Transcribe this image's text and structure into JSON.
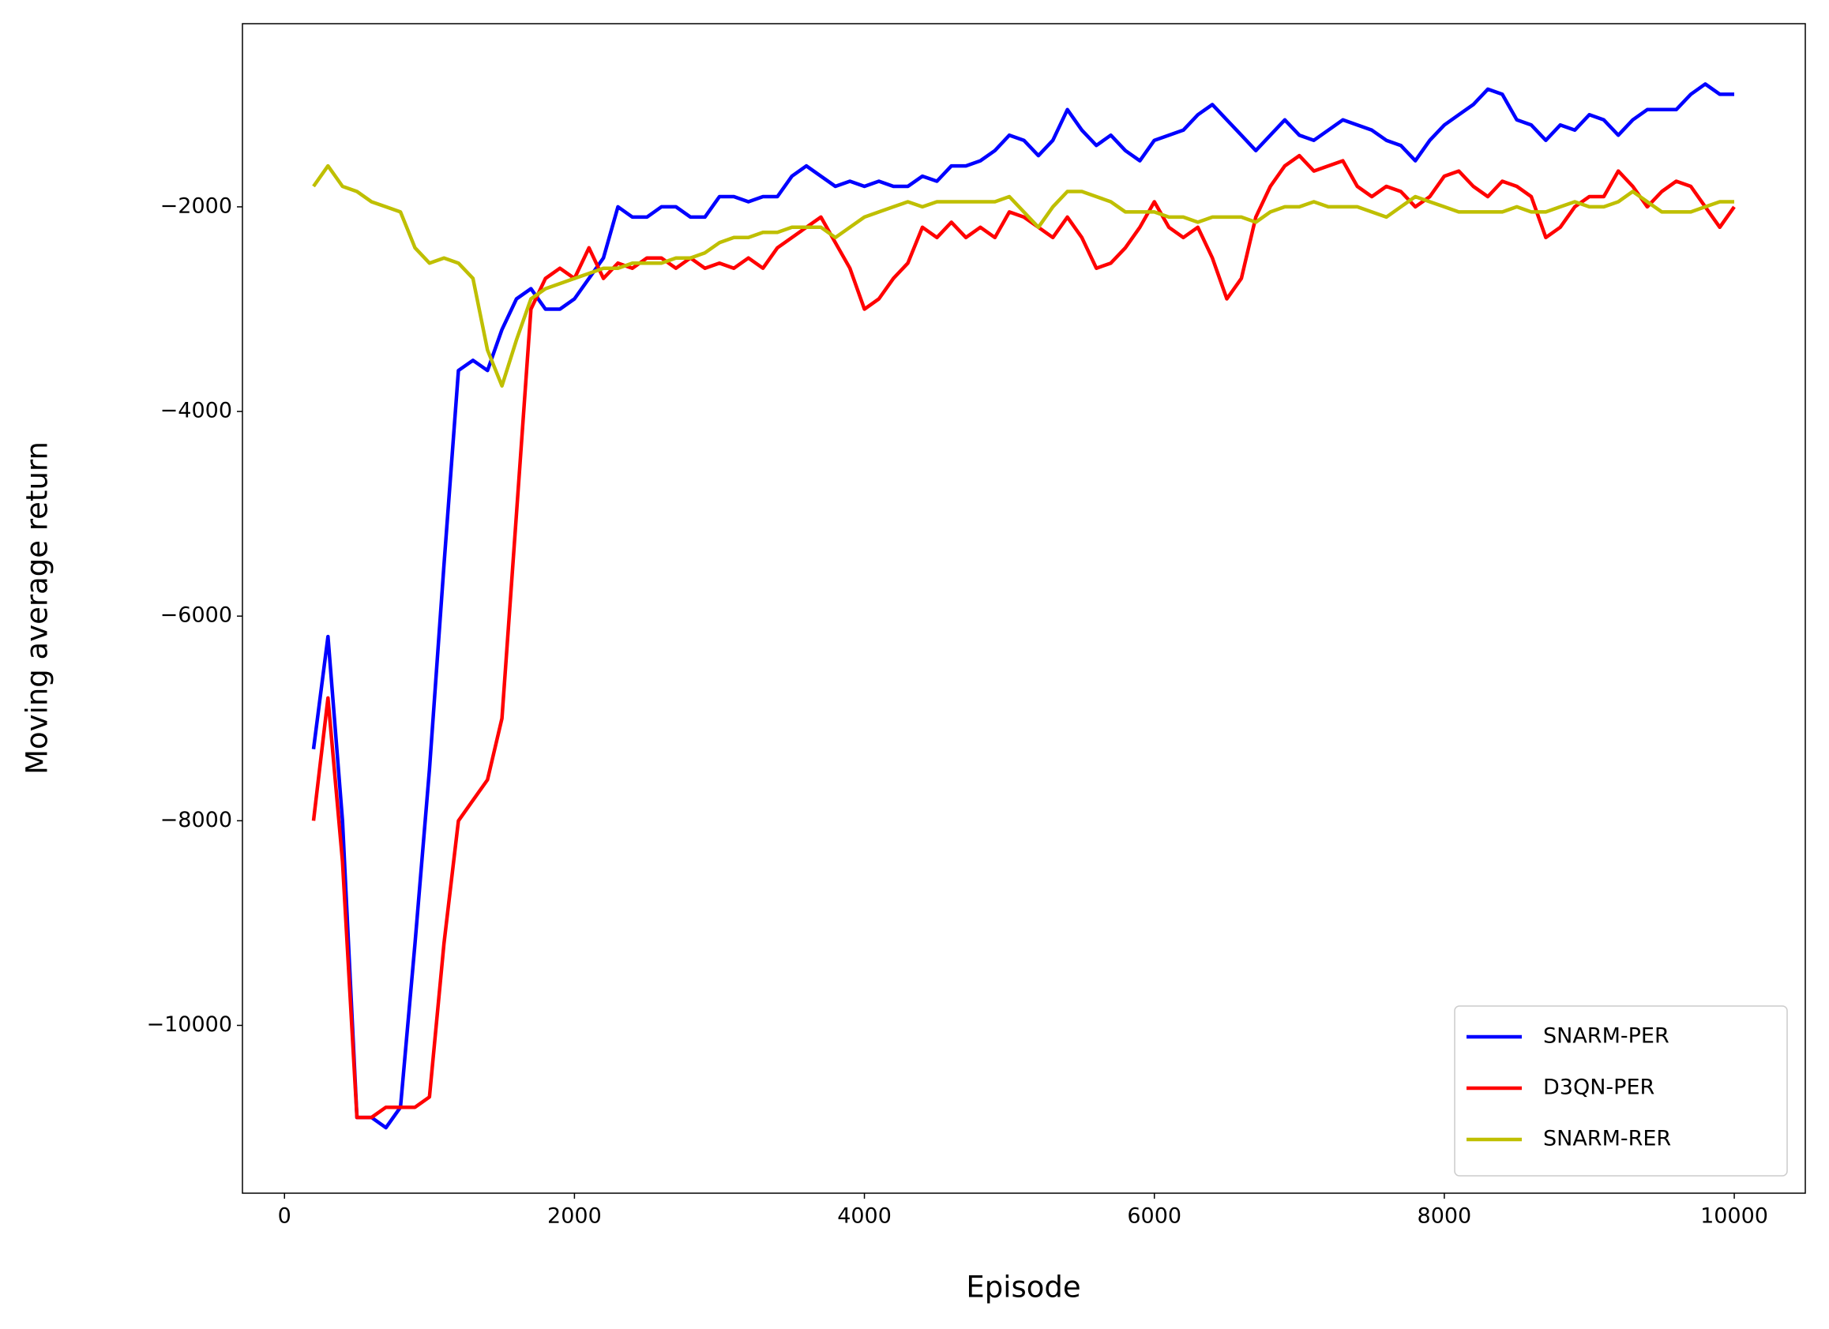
{
  "chart_data": {
    "type": "line",
    "x_label": "Episode",
    "y_label": "Moving average return",
    "xlim": [
      -290,
      10490
    ],
    "ylim": [
      -11640,
      -210
    ],
    "xticks": [
      0,
      2000,
      4000,
      6000,
      8000,
      10000
    ],
    "yticks": [
      {
        "value": -10000,
        "label": "−10000"
      },
      {
        "value": -8000,
        "label": "−8000"
      },
      {
        "value": -6000,
        "label": "−6000"
      },
      {
        "value": -4000,
        "label": "−4000"
      },
      {
        "value": -2000,
        "label": "−2000"
      }
    ],
    "legend": "lower right",
    "x": [
      200,
      300,
      400,
      500,
      600,
      700,
      800,
      900,
      1000,
      1100,
      1200,
      1300,
      1400,
      1500,
      1600,
      1700,
      1800,
      1900,
      2000,
      2100,
      2200,
      2300,
      2400,
      2500,
      2600,
      2700,
      2800,
      2900,
      3000,
      3100,
      3200,
      3300,
      3400,
      3500,
      3600,
      3700,
      3800,
      3900,
      4000,
      4100,
      4200,
      4300,
      4400,
      4500,
      4600,
      4700,
      4800,
      4900,
      5000,
      5100,
      5200,
      5300,
      5400,
      5500,
      5600,
      5700,
      5800,
      5900,
      6000,
      6100,
      6200,
      6300,
      6400,
      6500,
      6600,
      6700,
      6800,
      6900,
      7000,
      7100,
      7200,
      7300,
      7400,
      7500,
      7600,
      7700,
      7800,
      7900,
      8000,
      8100,
      8200,
      8300,
      8400,
      8500,
      8600,
      8700,
      8800,
      8900,
      9000,
      9100,
      9200,
      9300,
      9400,
      9500,
      9600,
      9700,
      9800,
      9900,
      10000
    ],
    "series": [
      {
        "name": "SNARM-PER",
        "color": "#0000ff",
        "values": [
          -7300,
          -6200,
          -8000,
          -10900,
          -10900,
          -11000,
          -10800,
          -9200,
          -7500,
          -5500,
          -3600,
          -3500,
          -3600,
          -3200,
          -2900,
          -2800,
          -3000,
          -3000,
          -2900,
          -2700,
          -2500,
          -2000,
          -2100,
          -2100,
          -2000,
          -2000,
          -2100,
          -2100,
          -1900,
          -1900,
          -1950,
          -1900,
          -1900,
          -1700,
          -1600,
          -1700,
          -1800,
          -1750,
          -1800,
          -1750,
          -1800,
          -1800,
          -1700,
          -1750,
          -1600,
          -1600,
          -1550,
          -1450,
          -1300,
          -1350,
          -1500,
          -1350,
          -1050,
          -1250,
          -1400,
          -1300,
          -1450,
          -1550,
          -1350,
          -1300,
          -1250,
          -1100,
          -1000,
          -1150,
          -1300,
          -1450,
          -1300,
          -1150,
          -1300,
          -1350,
          -1250,
          -1150,
          -1200,
          -1250,
          -1350,
          -1400,
          -1550,
          -1350,
          -1200,
          -1100,
          -1000,
          -850,
          -900,
          -1150,
          -1200,
          -1350,
          -1200,
          -1250,
          -1100,
          -1150,
          -1300,
          -1150,
          -1050,
          -1050,
          -1050,
          -900,
          -800,
          -900,
          -900
        ]
      },
      {
        "name": "D3QN-PER",
        "color": "#ff0000",
        "values": [
          -8000,
          -6800,
          -8400,
          -10900,
          -10900,
          -10800,
          -10800,
          -10800,
          -10700,
          -9200,
          -8000,
          -7800,
          -7600,
          -7000,
          -5000,
          -3000,
          -2700,
          -2600,
          -2700,
          -2400,
          -2700,
          -2550,
          -2600,
          -2500,
          -2500,
          -2600,
          -2500,
          -2600,
          -2550,
          -2600,
          -2500,
          -2600,
          -2400,
          -2300,
          -2200,
          -2100,
          -2350,
          -2600,
          -3000,
          -2900,
          -2700,
          -2550,
          -2200,
          -2300,
          -2150,
          -2300,
          -2200,
          -2300,
          -2050,
          -2100,
          -2200,
          -2300,
          -2100,
          -2300,
          -2600,
          -2550,
          -2400,
          -2200,
          -1950,
          -2200,
          -2300,
          -2200,
          -2500,
          -2900,
          -2700,
          -2100,
          -1800,
          -1600,
          -1500,
          -1650,
          -1600,
          -1550,
          -1800,
          -1900,
          -1800,
          -1850,
          -2000,
          -1900,
          -1700,
          -1650,
          -1800,
          -1900,
          -1750,
          -1800,
          -1900,
          -2300,
          -2200,
          -2000,
          -1900,
          -1900,
          -1650,
          -1800,
          -2000,
          -1850,
          -1750,
          -1800,
          -2000,
          -2200,
          -2000
        ]
      },
      {
        "name": "SNARM-RER",
        "color": "#bfbf00",
        "values": [
          -1800,
          -1600,
          -1800,
          -1850,
          -1950,
          -2000,
          -2050,
          -2400,
          -2550,
          -2500,
          -2550,
          -2700,
          -3400,
          -3750,
          -3300,
          -2900,
          -2800,
          -2750,
          -2700,
          -2650,
          -2600,
          -2600,
          -2550,
          -2550,
          -2550,
          -2500,
          -2500,
          -2450,
          -2350,
          -2300,
          -2300,
          -2250,
          -2250,
          -2200,
          -2200,
          -2200,
          -2300,
          -2200,
          -2100,
          -2050,
          -2000,
          -1950,
          -2000,
          -1950,
          -1950,
          -1950,
          -1950,
          -1950,
          -1900,
          -2050,
          -2200,
          -2000,
          -1850,
          -1850,
          -1900,
          -1950,
          -2050,
          -2050,
          -2050,
          -2100,
          -2100,
          -2150,
          -2100,
          -2100,
          -2100,
          -2150,
          -2050,
          -2000,
          -2000,
          -1950,
          -2000,
          -2000,
          -2000,
          -2050,
          -2100,
          -2000,
          -1900,
          -1950,
          -2000,
          -2050,
          -2050,
          -2050,
          -2050,
          -2000,
          -2050,
          -2050,
          -2000,
          -1950,
          -2000,
          -2000,
          -1950,
          -1850,
          -1950,
          -2050,
          -2050,
          -2050,
          -2000,
          -1950,
          -1950
        ]
      }
    ]
  }
}
